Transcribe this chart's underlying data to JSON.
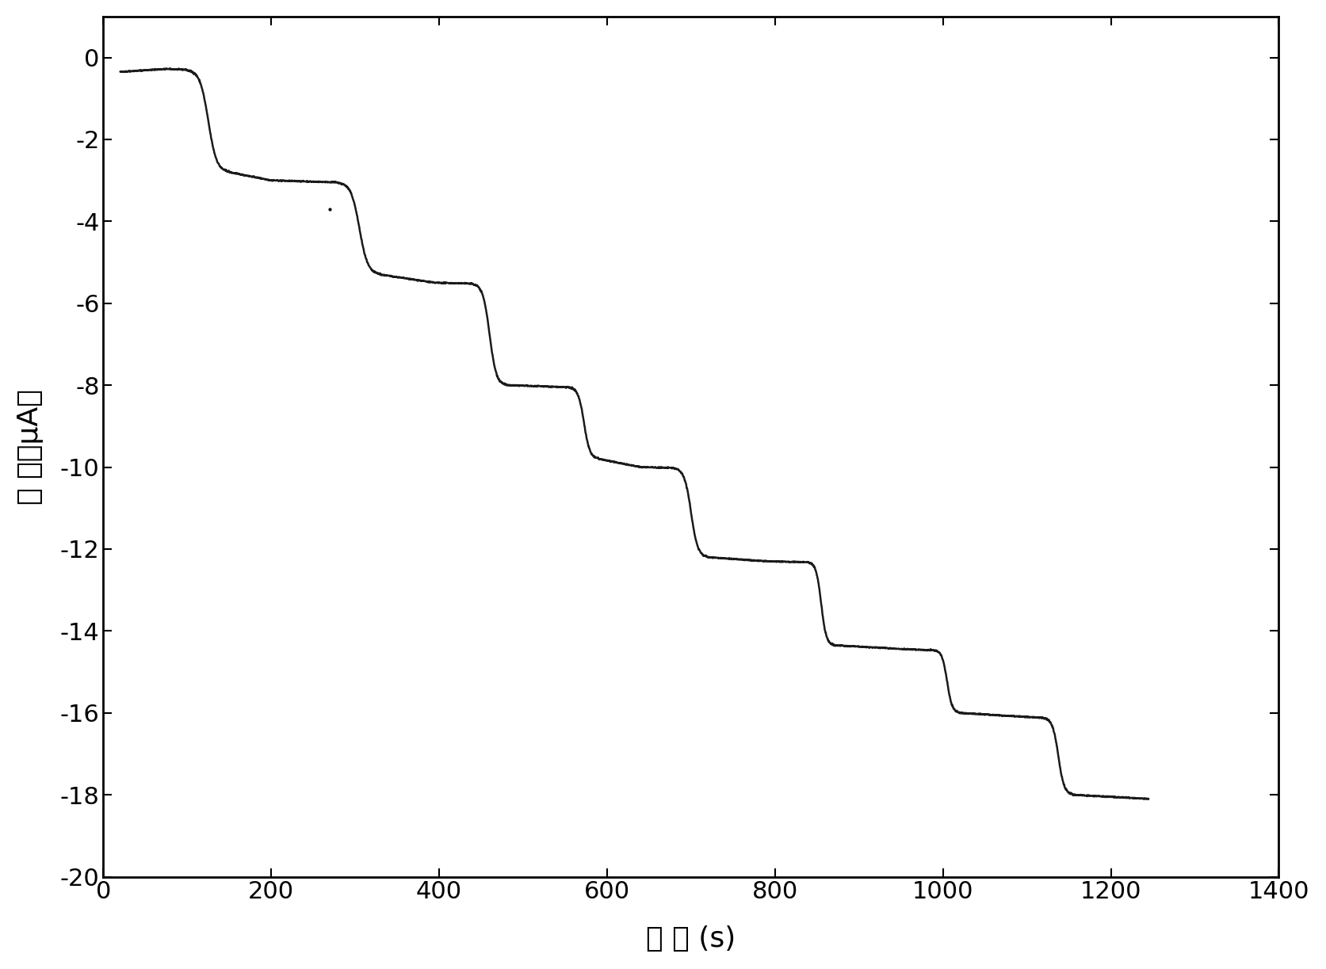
{
  "title": "",
  "xlabel": "时 间 (s)",
  "ylabel": "电 流（μA）",
  "xlim": [
    0,
    1400
  ],
  "ylim": [
    -20,
    1
  ],
  "xticks": [
    0,
    200,
    400,
    600,
    800,
    1000,
    1200,
    1400
  ],
  "yticks": [
    0,
    -2,
    -4,
    -6,
    -8,
    -10,
    -12,
    -14,
    -16,
    -18,
    -20
  ],
  "line_color": "#1a1a1a",
  "line_width": 1.8,
  "background_color": "#ffffff",
  "keypoints": [
    [
      20,
      -0.35
    ],
    [
      75,
      -0.28
    ],
    [
      100,
      -0.3
    ],
    [
      150,
      -2.8
    ],
    [
      200,
      -3.0
    ],
    [
      280,
      -3.05
    ],
    [
      330,
      -5.3
    ],
    [
      395,
      -5.5
    ],
    [
      440,
      -5.52
    ],
    [
      480,
      -8.0
    ],
    [
      555,
      -8.05
    ],
    [
      590,
      -9.8
    ],
    [
      640,
      -10.0
    ],
    [
      680,
      -10.02
    ],
    [
      720,
      -12.2
    ],
    [
      790,
      -12.3
    ],
    [
      840,
      -12.32
    ],
    [
      870,
      -14.35
    ],
    [
      960,
      -14.45
    ],
    [
      990,
      -14.47
    ],
    [
      1020,
      -16.0
    ],
    [
      1100,
      -16.1
    ],
    [
      1120,
      -16.12
    ],
    [
      1155,
      -18.0
    ],
    [
      1245,
      -18.1
    ]
  ],
  "noise_scale": 0.02,
  "dot_x": 270,
  "dot_y": -3.7
}
